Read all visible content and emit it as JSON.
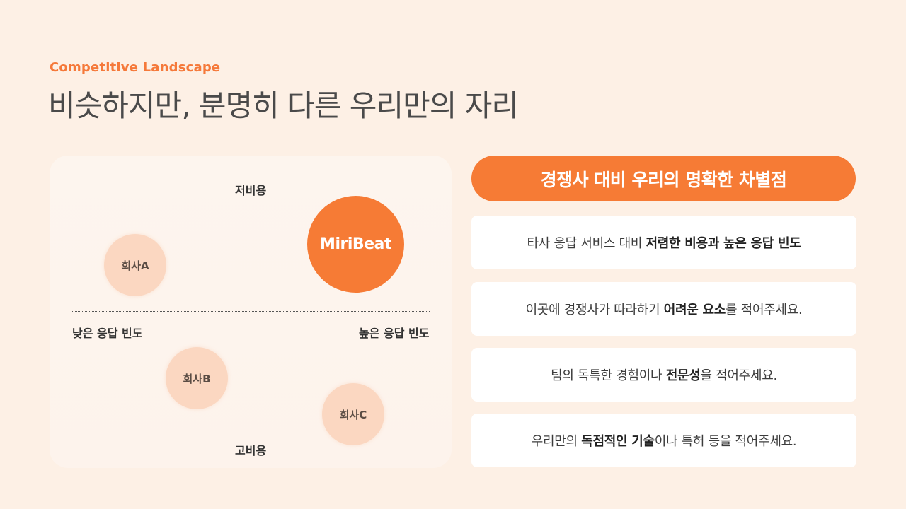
{
  "header": {
    "eyebrow": "Competitive Landscape",
    "title": "비슷하지만, 분명히 다른 우리만의 자리"
  },
  "matrix": {
    "axis_top": "저비용",
    "axis_bottom": "고비용",
    "axis_left": "낮은 응답 빈도",
    "axis_right": "높은 응답 빈도",
    "hero_label": "MiriBeat",
    "competitors": [
      {
        "label": "회사A"
      },
      {
        "label": "회사B"
      },
      {
        "label": "회사C"
      }
    ]
  },
  "differentiators": {
    "heading": "경쟁사 대비 우리의 명확한 차별점",
    "items": [
      {
        "pre": "타사 응답 서비스 대비 ",
        "bold": "저렴한 비용과 높은 응답 빈도",
        "post": ""
      },
      {
        "pre": "이곳에 경쟁사가 따라하기 ",
        "bold": "어려운 요소",
        "post": "를 적어주세요."
      },
      {
        "pre": "팀의 독특한 경험이나 ",
        "bold": "전문성",
        "post": "을 적어주세요."
      },
      {
        "pre": "우리만의 ",
        "bold": "독점적인 기술",
        "post": "이나 특허 등을 적어주세요."
      }
    ]
  },
  "colors": {
    "accent": "#f67b35",
    "background": "#fdf0e5",
    "competitor_bubble": "#fbd7c1"
  }
}
